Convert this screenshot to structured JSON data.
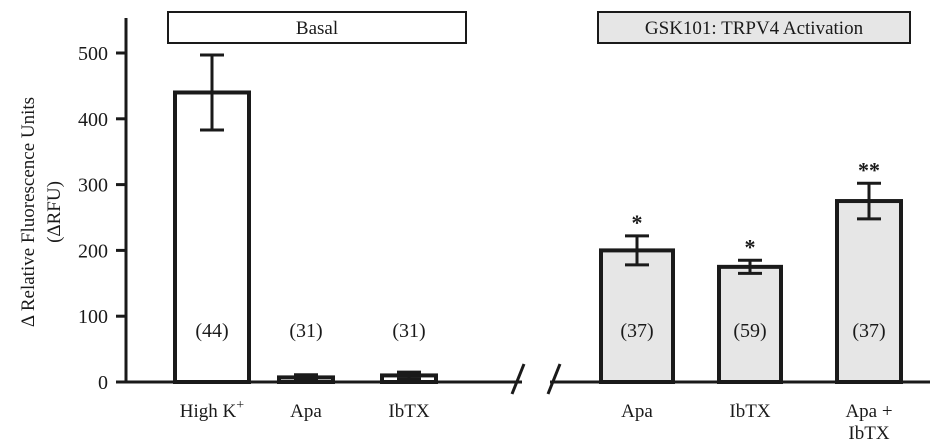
{
  "chart_data": {
    "type": "bar",
    "title": "",
    "ylabel": "Δ Relative Fluorescence Units",
    "ylabel_unit": "(ΔRFU)",
    "ylim": [
      0,
      500
    ],
    "yticks": [
      0,
      100,
      200,
      300,
      400,
      500
    ],
    "grid": false,
    "x_axis_break": true,
    "groups": [
      {
        "label": "Basal",
        "fill": "#ffffff"
      },
      {
        "label": "GSK101: TRPV4 Activation",
        "fill": "#e6e6e6"
      }
    ],
    "bars": [
      {
        "group": 0,
        "label": "High K",
        "label_sup": "+",
        "label_line2": "",
        "value": 440,
        "error": 57,
        "n": "(44)",
        "sig": ""
      },
      {
        "group": 0,
        "label": "Apa",
        "label_sup": "",
        "label_line2": "",
        "value": 7,
        "error": 4,
        "n": "(31)",
        "sig": ""
      },
      {
        "group": 0,
        "label": "IbTX",
        "label_sup": "",
        "label_line2": "",
        "value": 10,
        "error": 5,
        "n": "(31)",
        "sig": ""
      },
      {
        "group": 1,
        "label": "Apa",
        "label_sup": "",
        "label_line2": "",
        "value": 200,
        "error": 22,
        "n": "(37)",
        "sig": "*"
      },
      {
        "group": 1,
        "label": "IbTX",
        "label_sup": "",
        "label_line2": "",
        "value": 175,
        "error": 10,
        "n": "(59)",
        "sig": "*"
      },
      {
        "group": 1,
        "label": "Apa +",
        "label_sup": "",
        "label_line2": "IbTX",
        "value": 275,
        "error": 27,
        "n": "(37)",
        "sig": "**"
      }
    ],
    "colors": {
      "axis": "#1a1a1a",
      "basal_fill": "#ffffff",
      "gsk_fill": "#e6e6e6"
    }
  }
}
